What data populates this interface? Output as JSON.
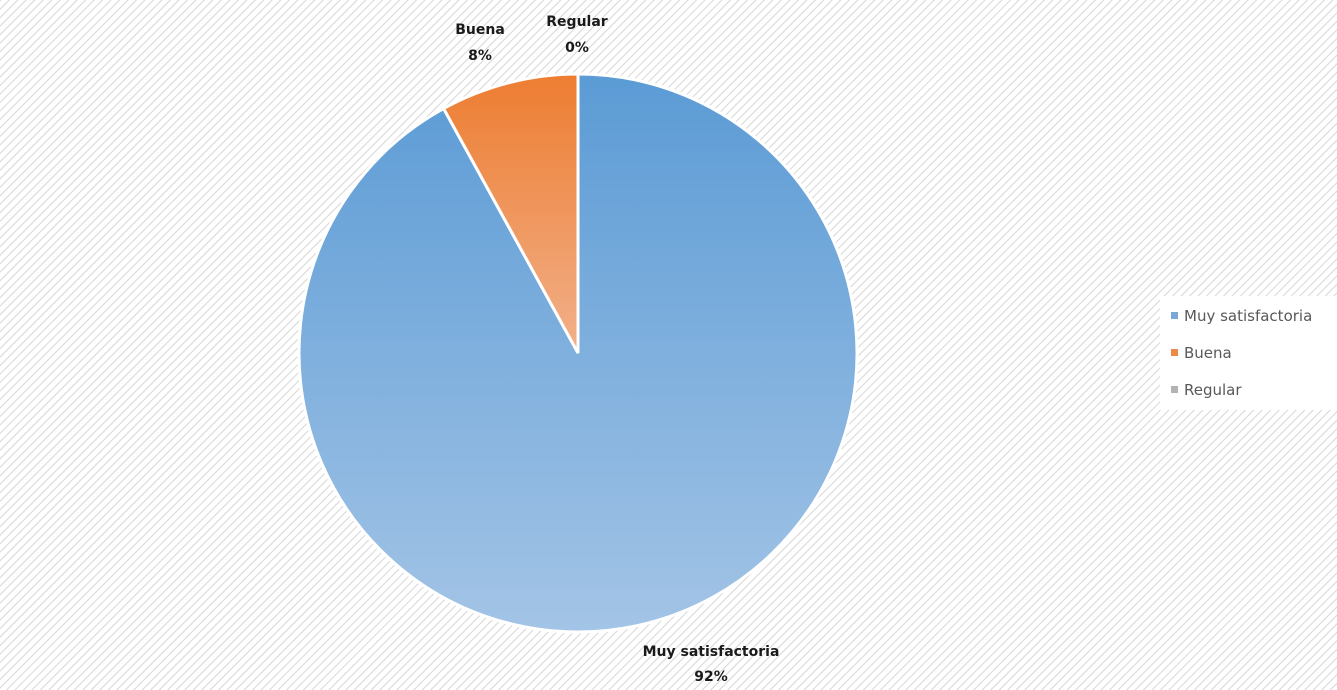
{
  "chart_data": {
    "type": "pie",
    "title": "",
    "categories": [
      "Muy satisfactoria",
      "Buena",
      "Regular"
    ],
    "values": [
      92,
      8,
      0
    ],
    "data_labels": [
      {
        "category": "Muy satisfactoria",
        "percent": "92%"
      },
      {
        "category": "Buena",
        "percent": "8%"
      },
      {
        "category": "Regular",
        "percent": "0%"
      }
    ],
    "colors": [
      "#7AA9D8",
      "#EC8A45",
      "#A5A5A5"
    ],
    "legend": {
      "placement": "right",
      "entries": [
        "Muy satisfactoria",
        "Buena",
        "Regular"
      ]
    }
  }
}
